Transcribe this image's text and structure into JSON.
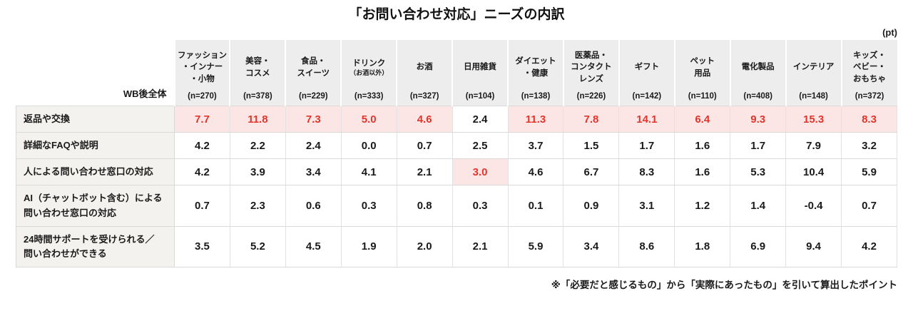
{
  "title": "「お問い合わせ対応」ニーズの内訳",
  "unit_label": "(pt)",
  "corner_label": "WB後全体",
  "footnote": "※「必要だと感じるもの」から「実際にあったもの」を引いて算出したポイント",
  "colors": {
    "header_bg": "#ededed",
    "row_label_bg": "#f4f2ef",
    "highlight_bg": "#fbe6e5",
    "highlight_text": "#e2342b",
    "grid_line": "#d9d9d9"
  },
  "columns": [
    {
      "label": "ファッション\n・インナー\n・小物",
      "n": "(n=270)"
    },
    {
      "label": "美容・\nコスメ",
      "n": "(n=378)"
    },
    {
      "label": "食品・\nスイーツ",
      "n": "(n=229)"
    },
    {
      "label": "ドリンク",
      "sublabel": "（お酒以外）",
      "n": "(n=333)"
    },
    {
      "label": "お酒",
      "n": "(n=327)"
    },
    {
      "label": "日用雑貨",
      "n": "(n=104)"
    },
    {
      "label": "ダイエット\n・健康",
      "n": "(n=138)"
    },
    {
      "label": "医薬品・\nコンタクト\nレンズ",
      "n": "(n=226)"
    },
    {
      "label": "ギフト",
      "n": "(n=142)"
    },
    {
      "label": "ペット\n用品",
      "n": "(n=110)"
    },
    {
      "label": "電化製品",
      "n": "(n=408)"
    },
    {
      "label": "インテリア",
      "n": "(n=148)"
    },
    {
      "label": "キッズ・\nベビー・\nおもちゃ",
      "n": "(n=372)"
    }
  ],
  "rows": [
    {
      "label": "返品や交換",
      "highlight": [
        0,
        1,
        2,
        3,
        4,
        6,
        7,
        8,
        9,
        10,
        11,
        12
      ]
    },
    {
      "label": "詳細なFAQや説明",
      "highlight": []
    },
    {
      "label": "人による問い合わせ窓口の対応",
      "highlight": [
        5
      ]
    },
    {
      "label": "AI（チャットボット含む）による\n問い合わせ窓口の対応",
      "highlight": []
    },
    {
      "label": "24時間サポートを受けられる／\n問い合わせができる",
      "highlight": []
    }
  ],
  "chart_data": {
    "type": "table",
    "title": "「お問い合わせ対応」ニーズの内訳",
    "unit": "pt",
    "note": "※「必要だと感じるもの」から「実際にあったもの」を引いて算出したポイント",
    "row_header": "WB後全体",
    "categories": [
      "ファッション・インナー・小物",
      "美容・コスメ",
      "食品・スイーツ",
      "ドリンク（お酒以外）",
      "お酒",
      "日用雑貨",
      "ダイエット・健康",
      "医薬品・コンタクトレンズ",
      "ギフト",
      "ペット用品",
      "電化製品",
      "インテリア",
      "キッズ・ベビー・おもちゃ"
    ],
    "sample_sizes": [
      270,
      378,
      229,
      333,
      327,
      104,
      138,
      226,
      142,
      110,
      408,
      148,
      372
    ],
    "series": [
      {
        "name": "返品や交換",
        "values": [
          7.7,
          11.8,
          7.3,
          5.0,
          4.6,
          2.4,
          11.3,
          7.8,
          14.1,
          6.4,
          9.3,
          15.3,
          8.3
        ]
      },
      {
        "name": "詳細なFAQや説明",
        "values": [
          4.2,
          2.2,
          2.4,
          0.0,
          0.7,
          2.5,
          3.7,
          1.5,
          1.7,
          1.6,
          1.7,
          7.9,
          3.2
        ]
      },
      {
        "name": "人による問い合わせ窓口の対応",
        "values": [
          4.2,
          3.9,
          3.4,
          4.1,
          2.1,
          3.0,
          4.6,
          6.7,
          8.3,
          1.6,
          5.3,
          10.4,
          5.9
        ]
      },
      {
        "name": "AI（チャットボット含む）による問い合わせ窓口の対応",
        "values": [
          0.7,
          2.3,
          0.6,
          0.3,
          0.8,
          0.3,
          0.1,
          0.9,
          3.1,
          1.2,
          1.4,
          -0.4,
          0.7
        ]
      },
      {
        "name": "24時間サポートを受けられる／問い合わせができる",
        "values": [
          3.5,
          5.2,
          4.5,
          1.9,
          2.0,
          2.1,
          5.9,
          3.4,
          8.6,
          1.8,
          6.9,
          9.4,
          4.2
        ]
      }
    ]
  }
}
